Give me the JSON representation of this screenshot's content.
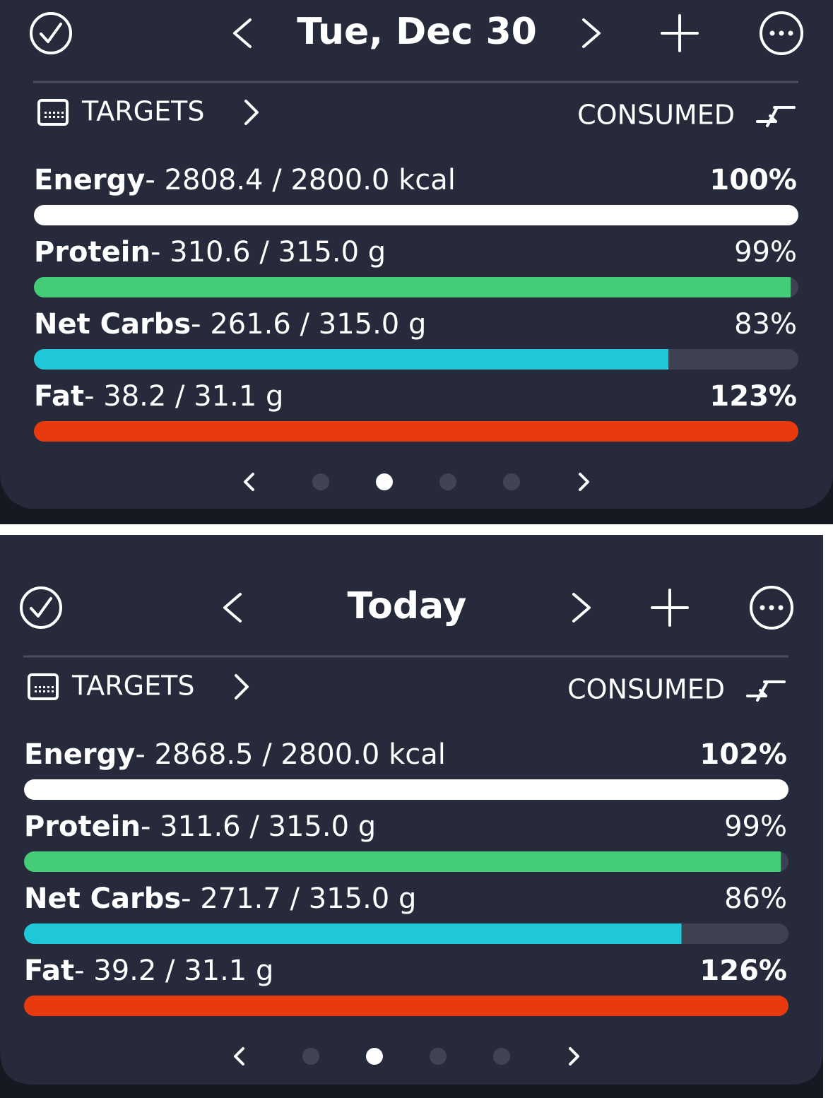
{
  "panels": [
    {
      "header": {
        "date": "Tue, Dec 30"
      },
      "targets_label": "TARGETS",
      "consumed_label": "CONSUMED",
      "nutrients": [
        {
          "name": "Energy",
          "amounts": "- 2808.4 / 2800.0 kcal",
          "percent": {
            "value": 100,
            "label": "100%"
          },
          "color": "#ffffff",
          "percent_color": "#6fd39a"
        },
        {
          "name": "Protein",
          "amounts": "- 310.6 / 315.0 g",
          "percent": {
            "value": 99,
            "label": "99%"
          },
          "color": "#44cc77",
          "percent_color": "#ffffff"
        },
        {
          "name": "Net Carbs",
          "amounts": "- 261.6 / 315.0 g",
          "percent": {
            "value": 83,
            "label": "83%"
          },
          "color": "#1ec8d8",
          "percent_color": "#ffffff"
        },
        {
          "name": "Fat",
          "amounts": "- 38.2 / 31.1 g",
          "percent": {
            "value": 123,
            "label": "123%"
          },
          "color": "#e83a0c",
          "percent_color": "#e5261a"
        }
      ]
    },
    {
      "header": {
        "date": "Today"
      },
      "targets_label": "TARGETS",
      "consumed_label": "CONSUMED",
      "nutrients": [
        {
          "name": "Energy",
          "amounts": "- 2868.5 / 2800.0 kcal",
          "percent": {
            "value": 102,
            "label": "102%"
          },
          "color": "#ffffff",
          "percent_color": "#6fd39a"
        },
        {
          "name": "Protein",
          "amounts": "- 311.6 / 315.0 g",
          "percent": {
            "value": 99,
            "label": "99%"
          },
          "color": "#44cc77",
          "percent_color": "#ffffff"
        },
        {
          "name": "Net Carbs",
          "amounts": "- 271.7 / 315.0 g",
          "percent": {
            "value": 86,
            "label": "86%"
          },
          "color": "#1ec8d8",
          "percent_color": "#ffffff"
        },
        {
          "name": "Fat",
          "amounts": "- 39.2 / 31.1 g",
          "percent": {
            "value": 126,
            "label": "126%"
          },
          "color": "#e83a0c",
          "percent_color": "#e5261a"
        }
      ]
    }
  ]
}
